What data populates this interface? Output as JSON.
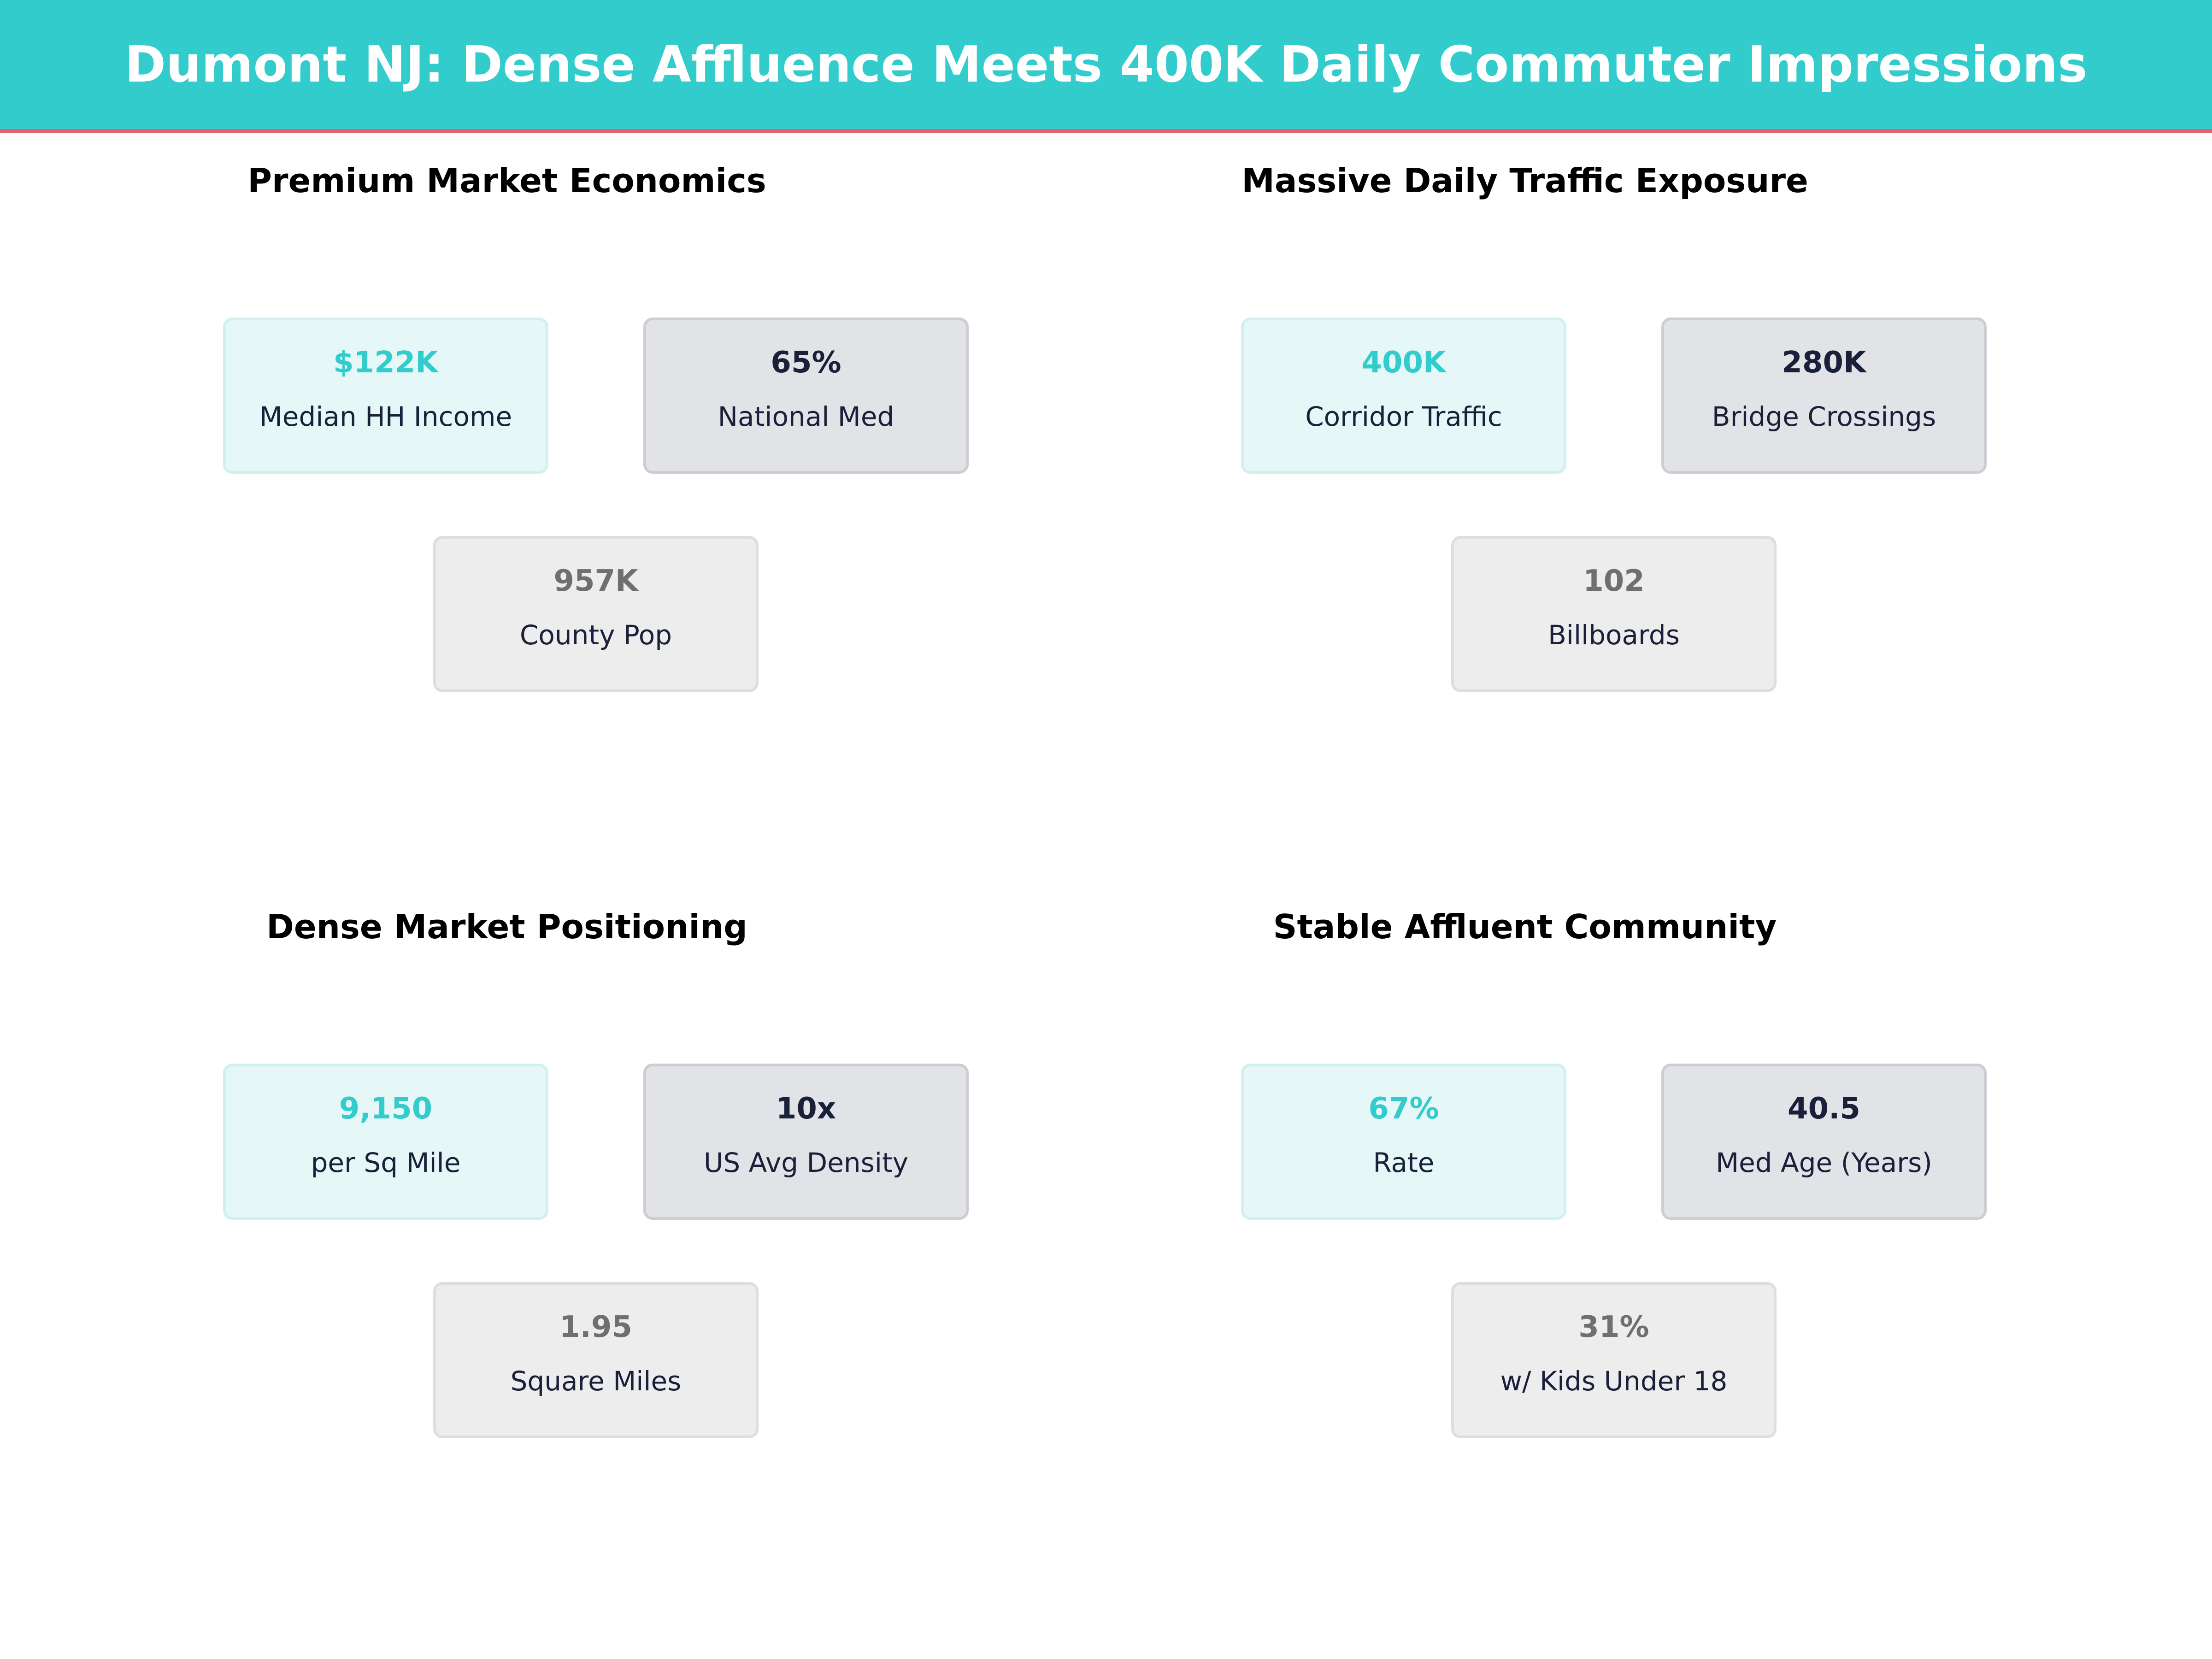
{
  "title": "Dumont NJ: Dense Affluence Meets 400K Daily Commuter Impressions",
  "colors": {
    "header": "#33CCCC",
    "header_rule": "#E8606E",
    "primary_value": "#33CCCC",
    "secondary_value": "#1A1F3A",
    "tertiary_value": "#6F6F6F"
  },
  "panels": [
    {
      "title": "Premium Market Economics",
      "cards": [
        {
          "value": "$122K",
          "label": "Median HH Income"
        },
        {
          "value": "65%",
          "label": "National Med"
        },
        {
          "value": "957K",
          "label": "County Pop"
        }
      ]
    },
    {
      "title": "Massive Daily Traffic Exposure",
      "cards": [
        {
          "value": "400K",
          "label": "Corridor Traffic"
        },
        {
          "value": "280K",
          "label": "Bridge Crossings"
        },
        {
          "value": "102",
          "label": "Billboards"
        }
      ]
    },
    {
      "title": "Dense Market Positioning",
      "cards": [
        {
          "value": "9,150",
          "label": "per Sq Mile"
        },
        {
          "value": "10x",
          "label": "US Avg Density"
        },
        {
          "value": "1.95",
          "label": "Square Miles"
        }
      ]
    },
    {
      "title": "Stable Affluent Community",
      "cards": [
        {
          "value": "67%",
          "label": "Rate"
        },
        {
          "value": "40.5",
          "label": "Med Age (Years)"
        },
        {
          "value": "31%",
          "label": "w/ Kids Under 18"
        }
      ]
    }
  ]
}
